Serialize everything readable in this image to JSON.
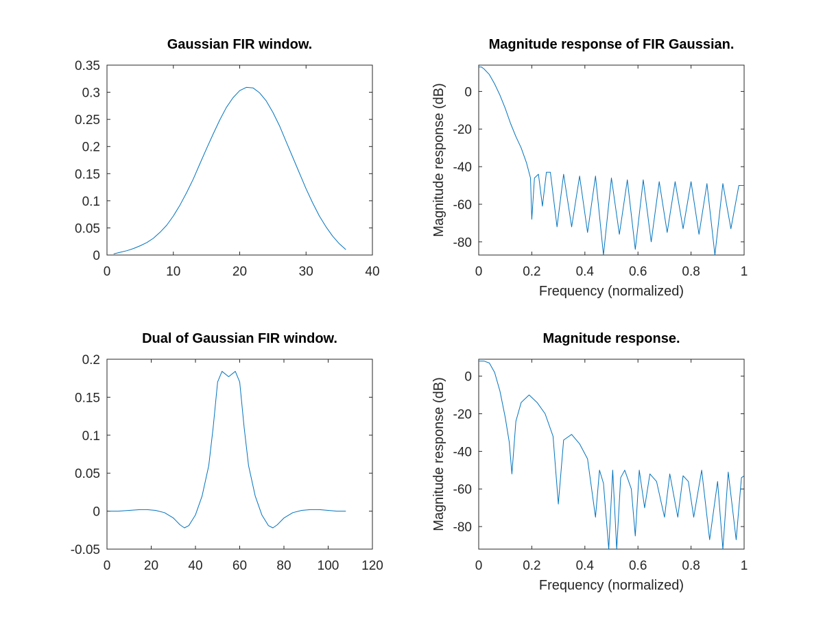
{
  "line_color": "#0072bd",
  "chart_data": [
    {
      "type": "line",
      "title": "Gaussian FIR window.",
      "xlabel": "",
      "ylabel": "",
      "xlim": [
        0,
        40
      ],
      "ylim": [
        0,
        0.35
      ],
      "xticks": [
        0,
        10,
        20,
        30,
        40
      ],
      "xtick_labels": [
        "0",
        "10",
        "20",
        "30",
        "40"
      ],
      "yticks": [
        0,
        0.05,
        0.1,
        0.15,
        0.2,
        0.25,
        0.3,
        0.35
      ],
      "ytick_labels": [
        "0",
        "0.05",
        "0.1",
        "0.15",
        "0.2",
        "0.25",
        "0.3",
        "0.35"
      ],
      "x": [
        1,
        2,
        3,
        4,
        5,
        6,
        7,
        8,
        9,
        10,
        11,
        12,
        13,
        14,
        15,
        16,
        17,
        18,
        19,
        20,
        21,
        22,
        23,
        24,
        25,
        26,
        27,
        28,
        29,
        30,
        31,
        32,
        33,
        34,
        35,
        36
      ],
      "y": [
        0.002,
        0.005,
        0.008,
        0.012,
        0.017,
        0.023,
        0.031,
        0.042,
        0.055,
        0.072,
        0.092,
        0.115,
        0.14,
        0.168,
        0.196,
        0.223,
        0.249,
        0.272,
        0.29,
        0.303,
        0.309,
        0.308,
        0.299,
        0.284,
        0.263,
        0.238,
        0.209,
        0.18,
        0.151,
        0.122,
        0.096,
        0.072,
        0.052,
        0.035,
        0.021,
        0.01
      ]
    },
    {
      "type": "line",
      "title": "Magnitude response of FIR Gaussian.",
      "xlabel": "Frequency (normalized)",
      "ylabel": "Magnitude response (dB)",
      "xlim": [
        0,
        1
      ],
      "ylim": [
        -87,
        14
      ],
      "xticks": [
        0,
        0.2,
        0.4,
        0.6,
        0.8,
        1
      ],
      "xtick_labels": [
        "0",
        "0.2",
        "0.4",
        "0.6",
        "0.8",
        "1"
      ],
      "yticks": [
        0,
        -20,
        -40,
        -60,
        -80
      ],
      "ytick_labels": [
        "0",
        "-20",
        "-40",
        "-60",
        "-80"
      ],
      "x": [
        0,
        0.01,
        0.02,
        0.04,
        0.06,
        0.08,
        0.1,
        0.12,
        0.14,
        0.16,
        0.18,
        0.195,
        0.2,
        0.21,
        0.225,
        0.24,
        0.255,
        0.27,
        0.295,
        0.32,
        0.35,
        0.38,
        0.41,
        0.44,
        0.47,
        0.5,
        0.53,
        0.56,
        0.59,
        0.62,
        0.65,
        0.68,
        0.71,
        0.74,
        0.77,
        0.8,
        0.83,
        0.86,
        0.89,
        0.92,
        0.95,
        0.98,
        1
      ],
      "y": [
        13,
        13,
        12,
        9,
        4,
        -2,
        -9,
        -17,
        -24,
        -30,
        -38,
        -46,
        -68,
        -46,
        -44,
        -61,
        -43,
        -43,
        -72,
        -44,
        -72,
        -45,
        -75,
        -45,
        -87,
        -46,
        -76,
        -47,
        -84,
        -47,
        -80,
        -48,
        -75,
        -48,
        -73,
        -48,
        -76,
        -49,
        -87,
        -49,
        -73,
        -50,
        -50
      ]
    },
    {
      "type": "line",
      "title": "Dual of Gaussian FIR window.",
      "xlabel": "",
      "ylabel": "",
      "xlim": [
        0,
        120
      ],
      "ylim": [
        -0.05,
        0.2
      ],
      "xticks": [
        0,
        20,
        40,
        60,
        80,
        100,
        120
      ],
      "xtick_labels": [
        "0",
        "20",
        "40",
        "60",
        "80",
        "100",
        "120"
      ],
      "yticks": [
        -0.05,
        0,
        0.05,
        0.1,
        0.15,
        0.2
      ],
      "ytick_labels": [
        "-0.05",
        "0",
        "0.05",
        "0.1",
        "0.15",
        "0.2"
      ],
      "x": [
        1,
        5,
        10,
        15,
        18,
        22,
        26,
        30,
        33,
        35,
        37,
        40,
        43,
        46,
        48,
        50,
        52,
        55,
        58,
        60,
        62,
        64,
        67,
        70,
        73,
        75,
        77,
        80,
        84,
        88,
        92,
        96,
        100,
        104,
        108
      ],
      "y": [
        0,
        0,
        0.001,
        0.002,
        0.002,
        0.001,
        -0.002,
        -0.009,
        -0.018,
        -0.022,
        -0.019,
        -0.005,
        0.02,
        0.06,
        0.11,
        0.17,
        0.184,
        0.177,
        0.184,
        0.17,
        0.11,
        0.06,
        0.02,
        -0.005,
        -0.019,
        -0.022,
        -0.018,
        -0.009,
        -0.002,
        0.001,
        0.002,
        0.002,
        0.001,
        0,
        0
      ]
    },
    {
      "type": "line",
      "title": "Magnitude response.",
      "xlabel": "Frequency (normalized)",
      "ylabel": "Magnitude response (dB)",
      "xlim": [
        0,
        1
      ],
      "ylim": [
        -92,
        9
      ],
      "xticks": [
        0,
        0.2,
        0.4,
        0.6,
        0.8,
        1
      ],
      "xtick_labels": [
        "0",
        "0.2",
        "0.4",
        "0.6",
        "0.8",
        "1"
      ],
      "yticks": [
        0,
        -20,
        -40,
        -60,
        -80
      ],
      "ytick_labels": [
        "0",
        "-20",
        "-40",
        "-60",
        "-80"
      ],
      "x": [
        0,
        0.02,
        0.04,
        0.06,
        0.08,
        0.1,
        0.115,
        0.125,
        0.14,
        0.16,
        0.19,
        0.22,
        0.25,
        0.28,
        0.3,
        0.32,
        0.35,
        0.38,
        0.41,
        0.44,
        0.455,
        0.47,
        0.49,
        0.505,
        0.52,
        0.535,
        0.55,
        0.575,
        0.59,
        0.605,
        0.625,
        0.645,
        0.67,
        0.7,
        0.72,
        0.75,
        0.77,
        0.79,
        0.81,
        0.84,
        0.87,
        0.9,
        0.92,
        0.94,
        0.97,
        0.99,
        1
      ],
      "y": [
        8,
        8,
        7,
        2,
        -8,
        -22,
        -35,
        -52,
        -24,
        -14,
        -10,
        -14,
        -20,
        -32,
        -68,
        -34,
        -31,
        -36,
        -44,
        -75,
        -50,
        -57,
        -92,
        -50,
        -92,
        -54,
        -50,
        -60,
        -85,
        -50,
        -70,
        -52,
        -56,
        -75,
        -52,
        -75,
        -53,
        -56,
        -75,
        -50,
        -87,
        -56,
        -92,
        -51,
        -87,
        -54,
        -53
      ]
    }
  ]
}
